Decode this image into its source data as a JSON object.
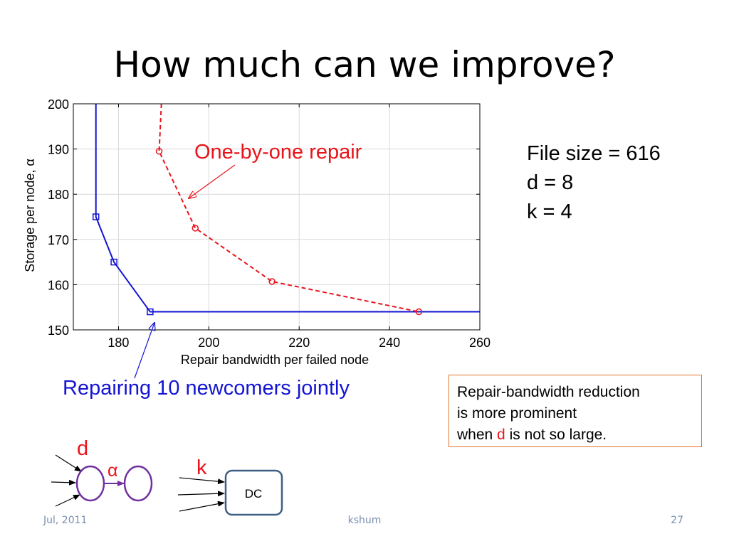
{
  "slide": {
    "title": "How much can we improve?",
    "params": [
      "File size = 616",
      "d = 8",
      "k = 4"
    ],
    "annot_red": "One-by-one repair",
    "annot_blue": "Repairing 10 newcomers jointly",
    "note": {
      "line1": "Repair-bandwidth reduction",
      "line2": "is more prominent",
      "line3_prefix": "when ",
      "line3_highlight": "d",
      "line3_suffix": " is not so large."
    },
    "diagram": {
      "d_label": "d",
      "alpha_label": "α",
      "k_label": "k",
      "dc_label": "DC"
    },
    "footer": {
      "date": "Jul, 2011",
      "author": "kshum",
      "page": "27"
    }
  },
  "chart_data": {
    "type": "line",
    "xlabel": "Repair bandwidth per failed node",
    "ylabel": "Storage per node, α",
    "xlim": [
      170,
      260
    ],
    "ylim": [
      150,
      200
    ],
    "xticks": [
      180,
      200,
      220,
      240,
      260
    ],
    "yticks": [
      150,
      160,
      170,
      180,
      190,
      200
    ],
    "grid": true,
    "series": [
      {
        "key": "joint",
        "color": "#1414d2",
        "line": "solid",
        "marker": "square",
        "points": [
          [
            175,
            200
          ],
          [
            175,
            175
          ],
          [
            179,
            165
          ],
          [
            187,
            154
          ],
          [
            260,
            154
          ]
        ],
        "marked": [
          [
            175,
            175
          ],
          [
            179,
            165
          ],
          [
            187,
            154
          ]
        ]
      },
      {
        "key": "one-by-one",
        "color": "#e8141b",
        "line": "dashed",
        "marker": "circle",
        "points": [
          [
            189.5,
            200
          ],
          [
            189,
            189.5
          ],
          [
            197,
            172.5
          ],
          [
            214,
            160.7
          ],
          [
            246.5,
            154
          ]
        ],
        "marked": [
          [
            189,
            189.5
          ],
          [
            197,
            172.5
          ],
          [
            214,
            160.7
          ],
          [
            246.5,
            154
          ]
        ]
      }
    ]
  }
}
